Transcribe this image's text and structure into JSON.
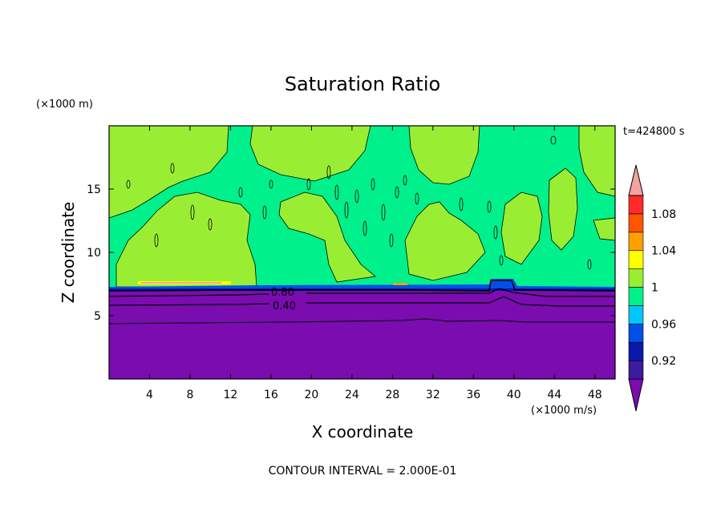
{
  "chart_data": {
    "type": "heatmap",
    "title": "Saturation Ratio",
    "xlabel": "X coordinate",
    "ylabel": "Z coordinate",
    "x_unit": "(×1000 m/s)",
    "y_unit": "(×1000 m)",
    "time_label": "t=424800 s",
    "footer": "CONTOUR INTERVAL = 2.000E-01",
    "xlim": [
      0,
      50
    ],
    "ylim": [
      0,
      20
    ],
    "x_ticks": [
      4,
      8,
      12,
      16,
      20,
      24,
      28,
      32,
      36,
      40,
      44,
      48
    ],
    "y_ticks": [
      5,
      10,
      15
    ],
    "contour_labels": [
      {
        "text": "0.80",
        "x": 17.5,
        "y": 6.8
      },
      {
        "text": "0.40",
        "x": 17.5,
        "y": 5.7
      }
    ],
    "colorbar": {
      "levels": [
        0.92,
        0.96,
        1,
        1.04,
        1.08
      ],
      "tick_labels": [
        "0.92",
        "0.96",
        "1",
        "1.04",
        "1.08"
      ],
      "colors": [
        "#7a0cb0",
        "#3d1a9e",
        "#0a1aa8",
        "#0050e8",
        "#00c8ff",
        "#00f08c",
        "#99ee33",
        "#ffff00",
        "#ffa000",
        "#ff5500",
        "#ff2a2a",
        "#f5a3a0"
      ]
    },
    "regions": {
      "boundary_layer_top": 7.2,
      "cirrus_band_low": 7.2,
      "cirrus_band_high": 19.8
    }
  }
}
